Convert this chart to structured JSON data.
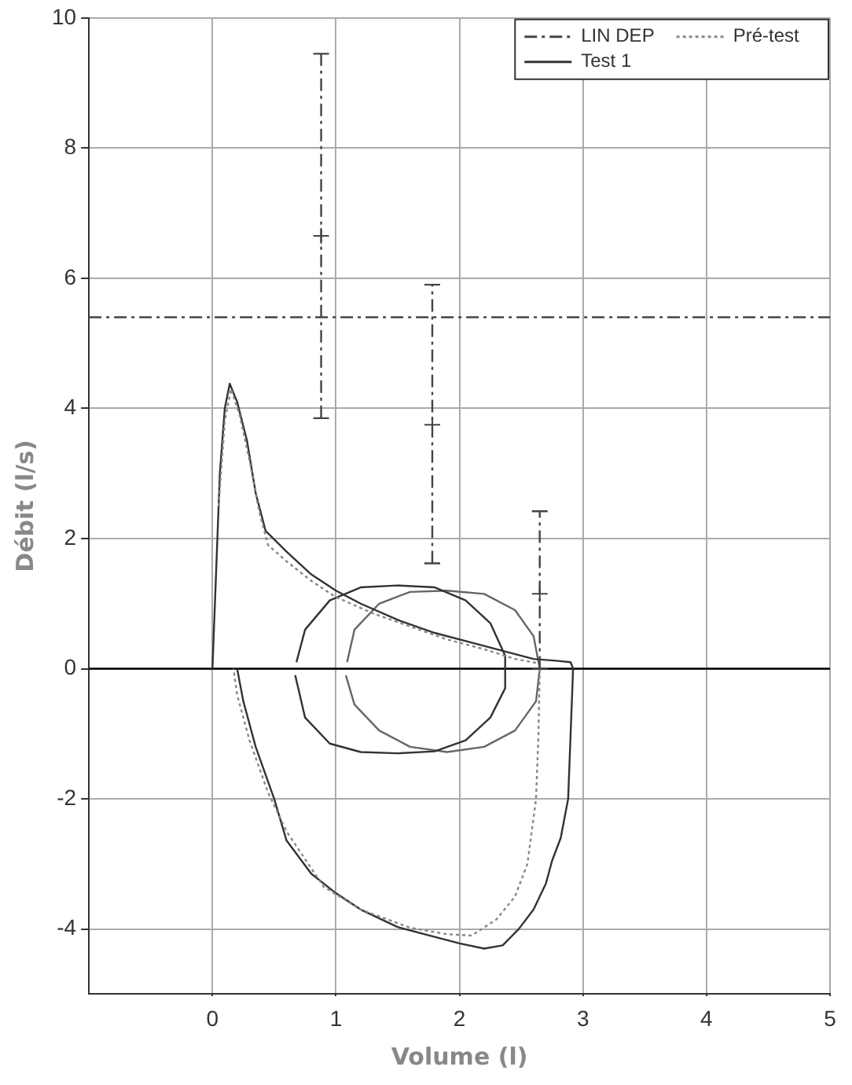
{
  "chart_data": {
    "type": "line",
    "xlabel": "Volume (l)",
    "ylabel": "Débit (l/s)",
    "xlim": [
      -1,
      5
    ],
    "xticks": [
      0,
      1,
      2,
      3,
      4,
      5
    ],
    "ylim": [
      -5,
      10
    ],
    "yticks": [
      -4,
      -2,
      0,
      2,
      4,
      6,
      8,
      10
    ],
    "grid": true,
    "legend": "top right",
    "marker": "none",
    "ref_lines": [
      {
        "axis": "y",
        "value": 5.4,
        "color": "#444444",
        "line_style": "dashed"
      },
      {
        "axis": "y",
        "value": 0,
        "color": "#000000",
        "line_style": "solid"
      }
    ],
    "series": [
      {
        "name": "LIN DEP",
        "type": "scatter",
        "color": "#444444",
        "line_style": "dashed",
        "marker": "cross",
        "x": [
          0.88,
          1.78,
          2.65
        ],
        "values": [
          6.65,
          3.75,
          1.15
        ],
        "errors": [
          [
            3.85,
            9.45
          ],
          [
            1.62,
            5.9
          ],
          [
            0,
            2.42
          ]
        ]
      },
      {
        "name": "Pré-test",
        "type": "line",
        "color": "#888888",
        "line_style": "dotted",
        "x": [
          0.05,
          0.1,
          0.15,
          0.22,
          0.3,
          0.38,
          0.45,
          0.6,
          0.8,
          1.0,
          1.3,
          1.6,
          1.9,
          2.2,
          2.45,
          2.65,
          2.65,
          2.64,
          2.62,
          2.55,
          2.45,
          2.3,
          2.1,
          1.9,
          1.6,
          1.2,
          0.9,
          0.6,
          0.45,
          0.3,
          0.2,
          0.17
        ],
        "values": [
          2.5,
          3.8,
          4.3,
          3.9,
          3.2,
          2.4,
          1.9,
          1.65,
          1.35,
          1.1,
          0.85,
          0.65,
          0.45,
          0.3,
          0.15,
          0.08,
          0,
          -1.0,
          -2.0,
          -3.0,
          -3.5,
          -3.85,
          -4.1,
          -4.08,
          -3.98,
          -3.7,
          -3.35,
          -2.5,
          -1.9,
          -1.1,
          -0.4,
          0
        ]
      },
      {
        "name": "Test 1",
        "type": "line",
        "color": "#333333",
        "line_style": "solid",
        "x": [
          0,
          0.02,
          0.06,
          0.1,
          0.14,
          0.2,
          0.28,
          0.35,
          0.43,
          0.6,
          0.8,
          1.0,
          1.2,
          1.5,
          1.8,
          2.1,
          2.4,
          2.6,
          2.8,
          2.9,
          2.92,
          2.9,
          2.88,
          2.82,
          2.75,
          2.7,
          2.6,
          2.48,
          2.35,
          2.2,
          2.0,
          1.8,
          1.5,
          1.2,
          1.0,
          0.8,
          0.6,
          0.5,
          0.35,
          0.25,
          0.2
        ],
        "values": [
          0,
          1.0,
          3.0,
          4.0,
          4.38,
          4.1,
          3.5,
          2.7,
          2.12,
          1.8,
          1.45,
          1.2,
          1.0,
          0.75,
          0.55,
          0.4,
          0.25,
          0.15,
          0.12,
          0.1,
          0,
          -1.0,
          -2.0,
          -2.6,
          -2.95,
          -3.3,
          -3.7,
          -4.0,
          -4.25,
          -4.3,
          -4.22,
          -4.12,
          -3.97,
          -3.7,
          -3.45,
          -3.15,
          -2.64,
          -2.0,
          -1.2,
          -0.5,
          0
        ]
      },
      {
        "type": "line",
        "color": "#333333",
        "line_style": "solid",
        "x": [
          0.68,
          0.75,
          0.95,
          1.2,
          1.5,
          1.8,
          2.05,
          2.25,
          2.37,
          2.37,
          2.25,
          2.05,
          1.8,
          1.5,
          1.2,
          0.95,
          0.75,
          0.67
        ],
        "values": [
          0.1,
          0.6,
          1.05,
          1.25,
          1.28,
          1.25,
          1.05,
          0.7,
          0.2,
          -0.3,
          -0.75,
          -1.1,
          -1.27,
          -1.3,
          -1.28,
          -1.15,
          -0.75,
          -0.1
        ]
      },
      {
        "type": "line",
        "color": "#666666",
        "line_style": "solid",
        "x": [
          1.09,
          1.15,
          1.35,
          1.6,
          1.9,
          2.2,
          2.45,
          2.6,
          2.65,
          2.62,
          2.45,
          2.2,
          1.9,
          1.6,
          1.35,
          1.15,
          1.08
        ],
        "values": [
          0.1,
          0.6,
          1.0,
          1.18,
          1.2,
          1.15,
          0.9,
          0.5,
          0,
          -0.5,
          -0.95,
          -1.2,
          -1.28,
          -1.2,
          -0.95,
          -0.55,
          -0.1
        ]
      }
    ]
  }
}
